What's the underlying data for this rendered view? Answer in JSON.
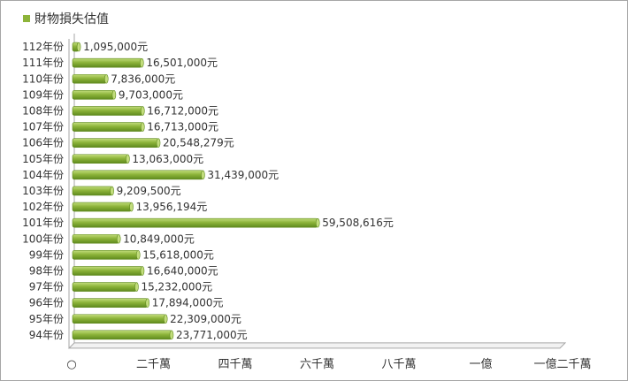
{
  "chart_data": {
    "type": "bar",
    "orientation": "horizontal",
    "legend": {
      "position": "top-left",
      "entries": [
        {
          "name": "財物損失估值",
          "color": "#8db43a"
        }
      ]
    },
    "categories": [
      "112年份",
      "111年份",
      "110年份",
      "109年份",
      "108年份",
      "107年份",
      "106年份",
      "105年份",
      "104年份",
      "103年份",
      "102年份",
      "101年份",
      "100年份",
      "99年份",
      "98年份",
      "97年份",
      "96年份",
      "95年份",
      "94年份"
    ],
    "series": [
      {
        "name": "財物損失估值",
        "values": [
          1095000,
          16501000,
          7836000,
          9703000,
          16712000,
          16713000,
          20548279,
          13063000,
          31439000,
          9209500,
          13956194,
          59508616,
          10849000,
          15618000,
          16640000,
          15232000,
          17894000,
          22309000,
          23771000
        ],
        "data_labels": [
          "1,095,000元",
          "16,501,000元",
          "7,836,000元",
          "9,703,000元",
          "16,712,000元",
          "16,713,000元",
          "20,548,279元",
          "13,063,000元",
          "31,439,000元",
          "9,209,500元",
          "13,956,194元",
          "59,508,616元",
          "10,849,000元",
          "15,618,000元",
          "16,640,000元",
          "15,232,000元",
          "17,894,000元",
          "22,309,000元",
          "23,771,000元"
        ]
      }
    ],
    "xlim": [
      0,
      120000000
    ],
    "x_ticks": [
      {
        "value": 0,
        "label": "○"
      },
      {
        "value": 20000000,
        "label": "二千萬"
      },
      {
        "value": 40000000,
        "label": "四千萬"
      },
      {
        "value": 60000000,
        "label": "六千萬"
      },
      {
        "value": 80000000,
        "label": "八千萬"
      },
      {
        "value": 100000000,
        "label": "一億"
      },
      {
        "value": 120000000,
        "label": "一億二千萬"
      }
    ],
    "grid": false,
    "colors": {
      "bar": "#8db43a",
      "bar_dark": "#5f8a1e",
      "bar_light": "#c2dd7c",
      "axis": "#a6a6a6"
    }
  }
}
